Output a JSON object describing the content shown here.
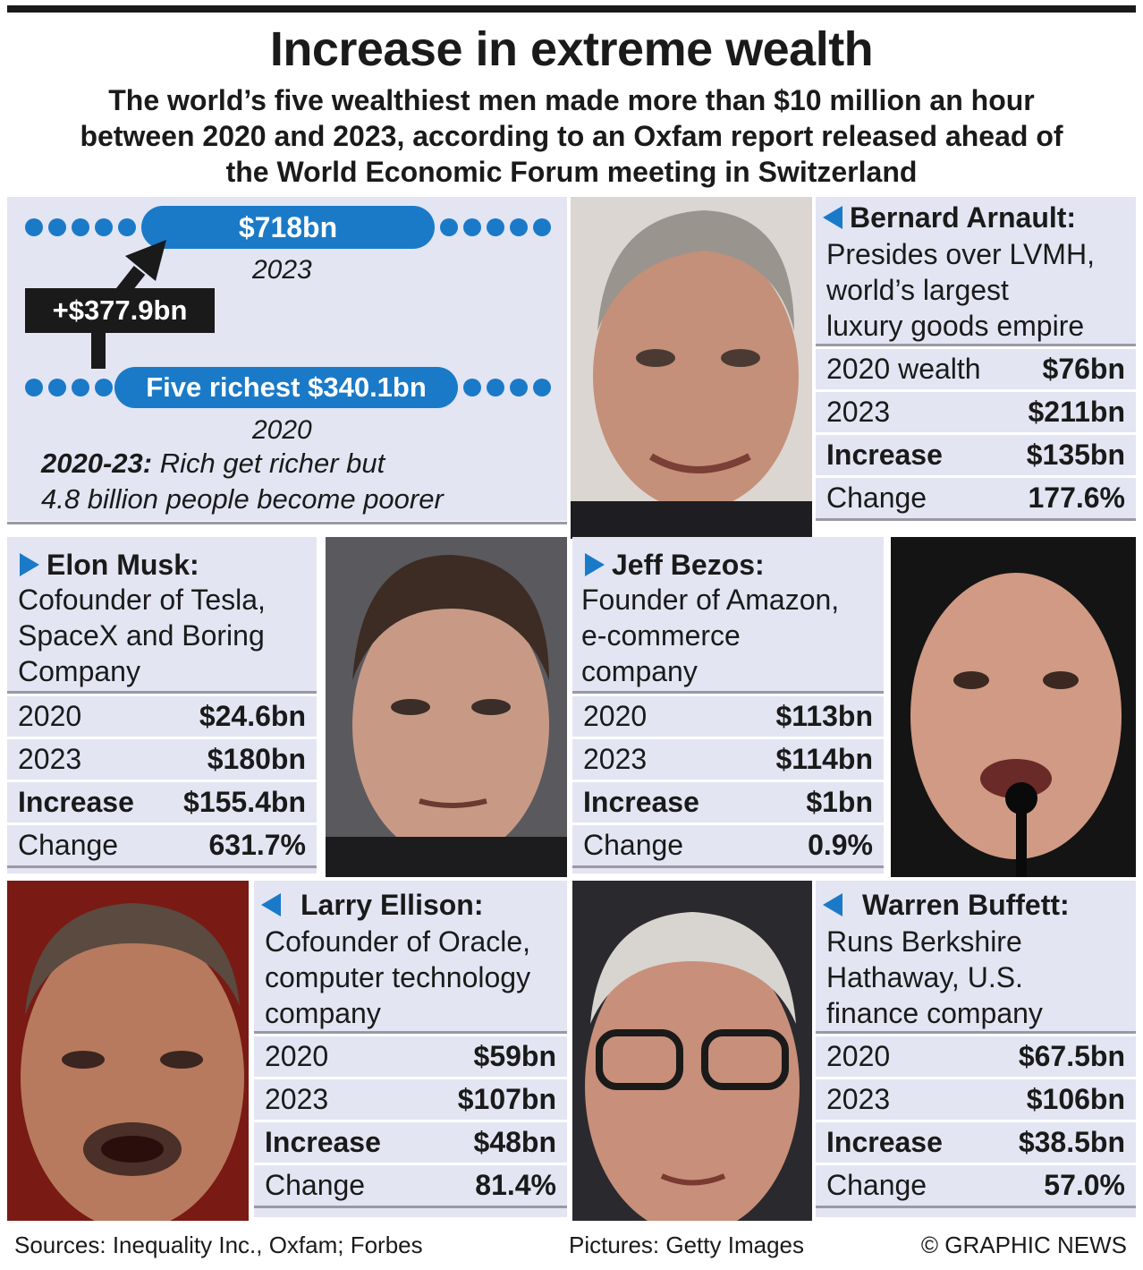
{
  "header": {
    "title": "Increase in extreme wealth",
    "subtitle_lines": [
      "The world’s five wealthiest men made more than $10 million an hour",
      "between 2020 and 2023, according to an Oxfam report released ahead of",
      "the World Economic Forum meeting in Switzerland"
    ]
  },
  "summary": {
    "total_2023": "$718bn",
    "year_2023": "2023",
    "increase_label": "+$377.9bn",
    "total_2020": "Five richest $340.1bn",
    "year_2020": "2020",
    "note_bold": "2020-23:",
    "note_line1": " Rich get richer but",
    "note_line2": "4.8 billion people become poorer",
    "accent_color": "#1a7ac8"
  },
  "people": {
    "arnault": {
      "name": "Bernard Arnault:",
      "desc": [
        "Presides over LVMH,",
        "world’s largest",
        "luxury goods empire"
      ],
      "rows": [
        {
          "k": "2020 wealth",
          "v": "$76bn"
        },
        {
          "k": "2023",
          "v": "$211bn"
        },
        {
          "k": "Increase",
          "v": "$135bn"
        },
        {
          "k": "Change",
          "v": "177.6%"
        }
      ]
    },
    "musk": {
      "name": "Elon Musk:",
      "desc": [
        "Cofounder of Tesla,",
        "SpaceX and Boring",
        "Company"
      ],
      "rows": [
        {
          "k": "2020",
          "v": "$24.6bn"
        },
        {
          "k": "2023",
          "v": "$180bn"
        },
        {
          "k": "Increase",
          "v": "$155.4bn"
        },
        {
          "k": "Change",
          "v": "631.7%"
        }
      ]
    },
    "bezos": {
      "name": "Jeff Bezos:",
      "desc": [
        "Founder of Amazon,",
        "e-commerce",
        "company"
      ],
      "rows": [
        {
          "k": "2020",
          "v": "$113bn"
        },
        {
          "k": "2023",
          "v": "$114bn"
        },
        {
          "k": "Increase",
          "v": "$1bn"
        },
        {
          "k": "Change",
          "v": "0.9%"
        }
      ]
    },
    "ellison": {
      "name": "Larry Ellison:",
      "desc": [
        "Cofounder of Oracle,",
        "computer technology",
        "company"
      ],
      "rows": [
        {
          "k": "2020",
          "v": "$59bn"
        },
        {
          "k": "2023",
          "v": "$107bn"
        },
        {
          "k": "Increase",
          "v": "$48bn"
        },
        {
          "k": "Change",
          "v": "81.4%"
        }
      ]
    },
    "buffett": {
      "name": "Warren Buffett:",
      "desc": [
        "Runs Berkshire",
        "Hathaway, U.S.",
        "finance company"
      ],
      "rows": [
        {
          "k": "2020",
          "v": "$67.5bn"
        },
        {
          "k": "2023",
          "v": "$106bn"
        },
        {
          "k": "Increase",
          "v": "$38.5bn"
        },
        {
          "k": "Change",
          "v": "57.0%"
        }
      ]
    }
  },
  "footer": {
    "sources": "Sources: Inequality Inc., Oxfam; Forbes",
    "pictures": "Pictures: Getty Images",
    "credit": "© GRAPHIC NEWS"
  }
}
